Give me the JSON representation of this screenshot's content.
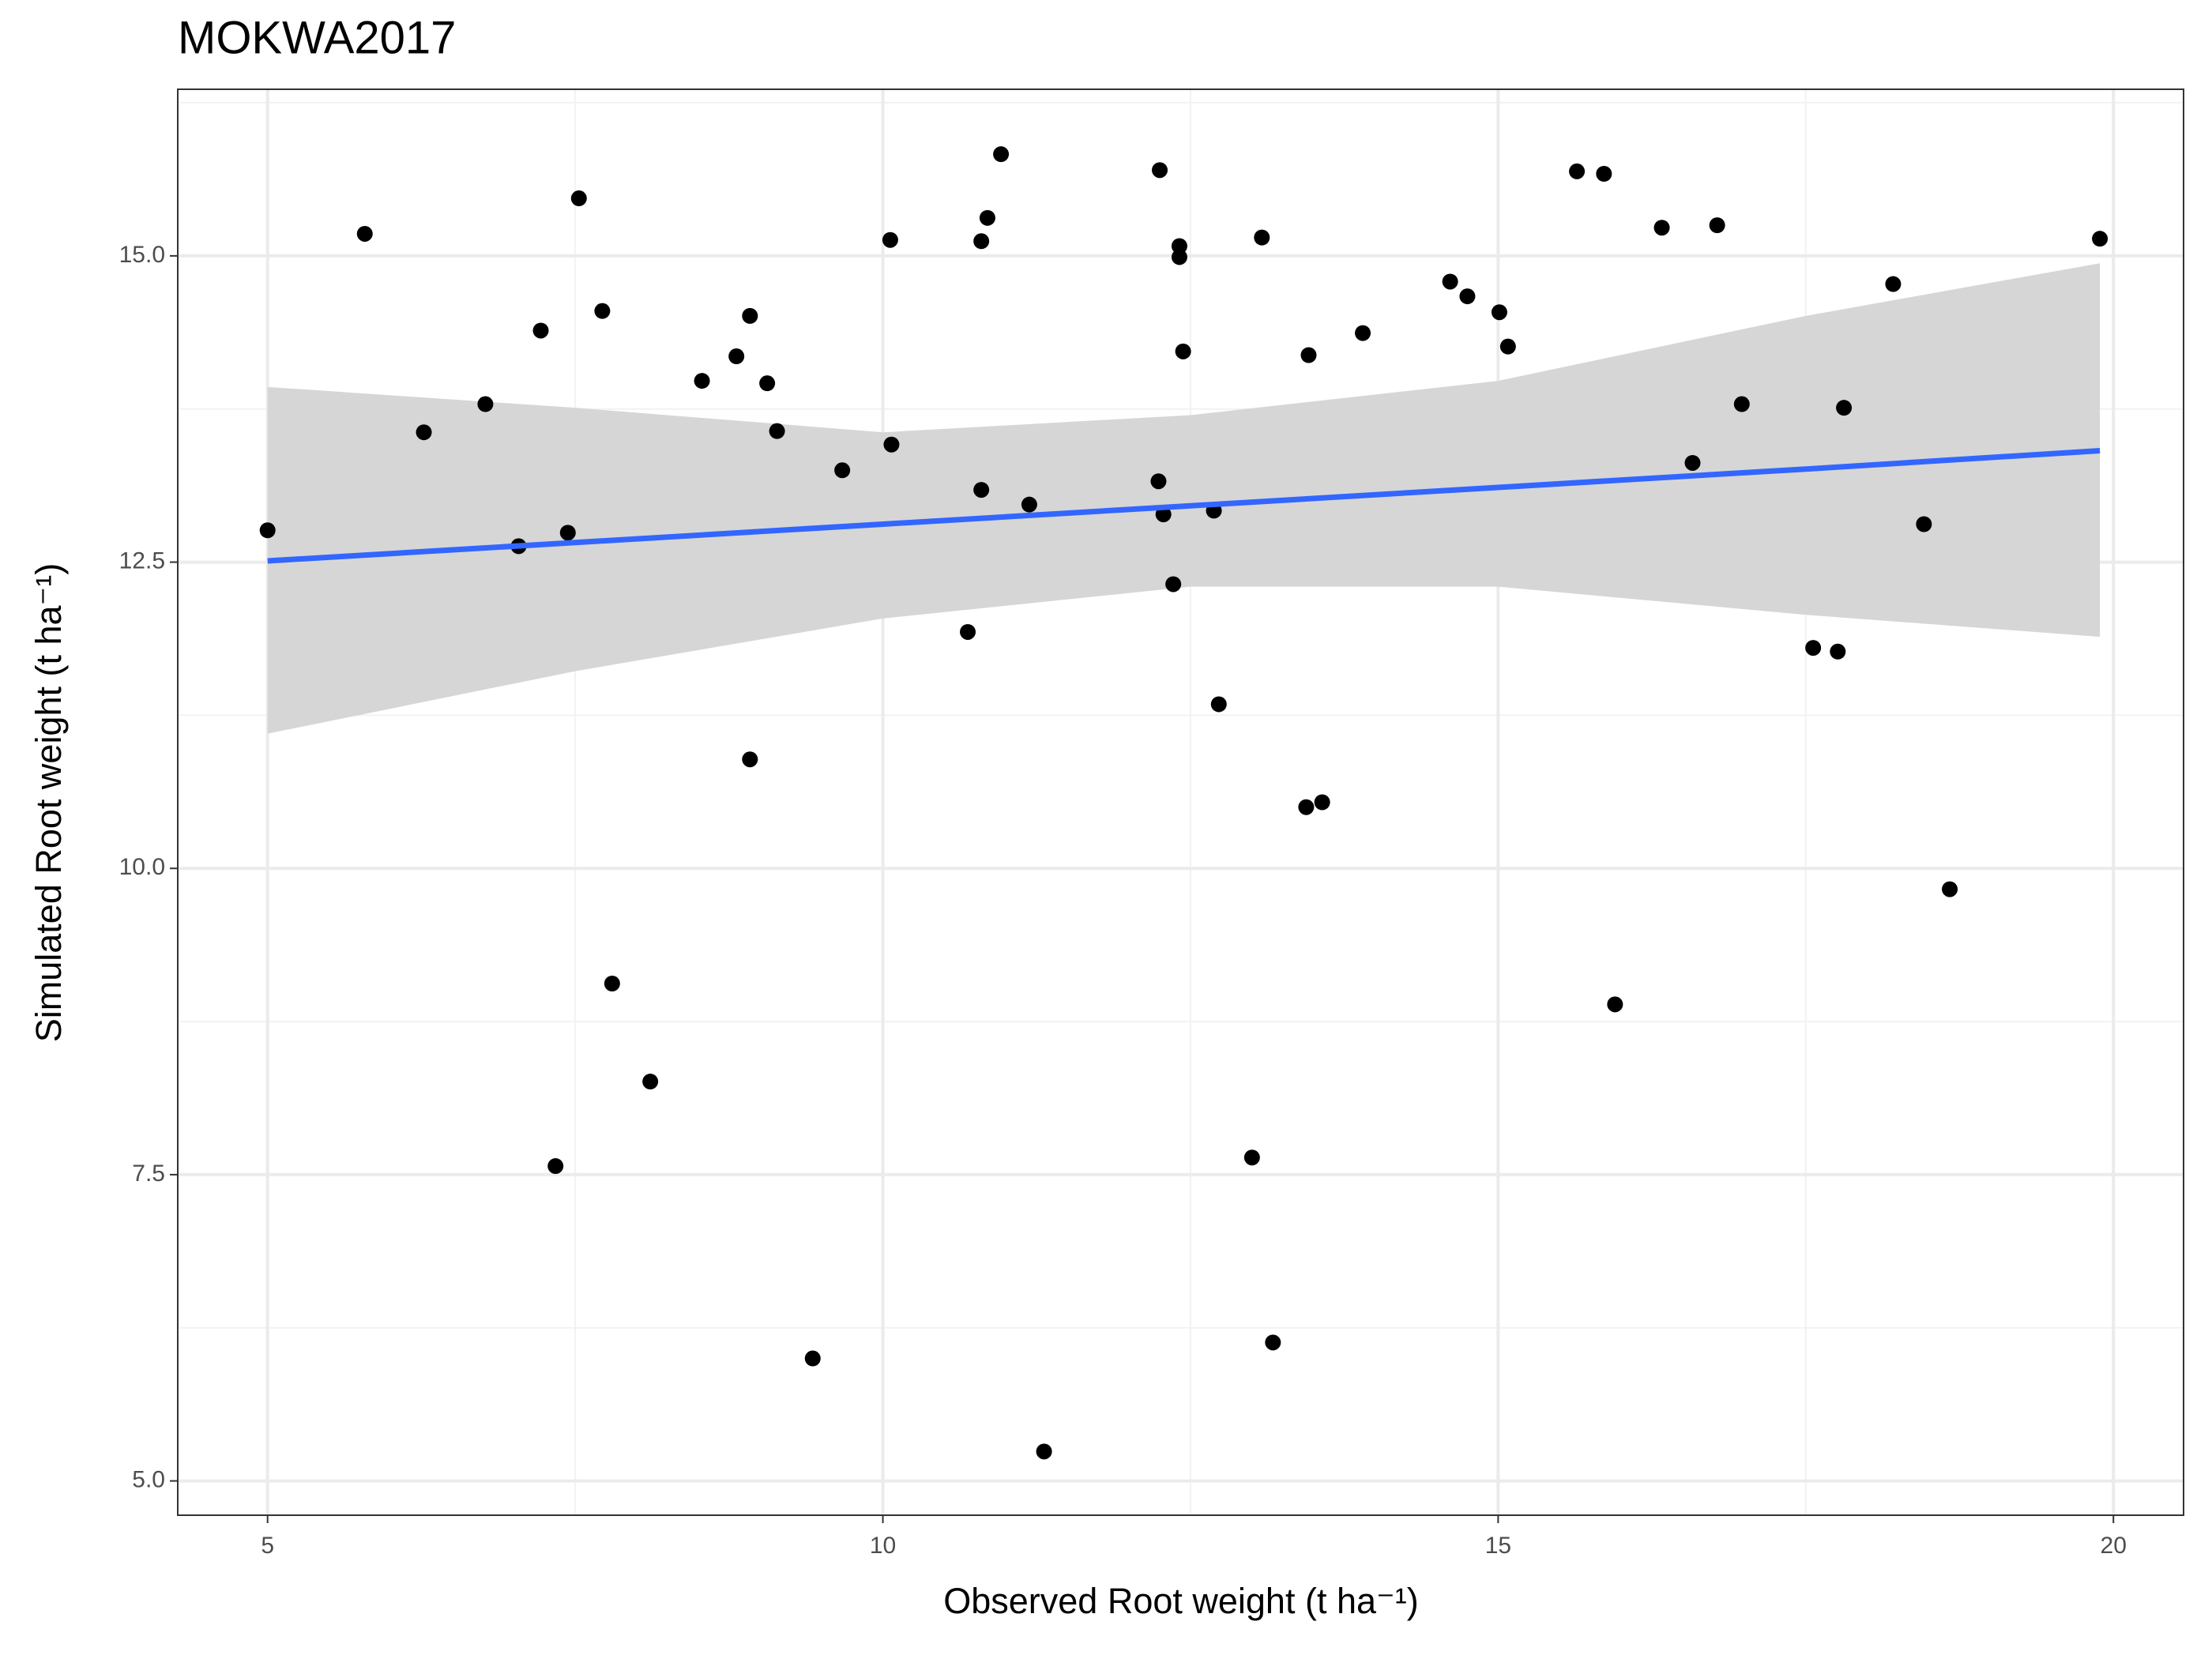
{
  "chart_data": {
    "type": "scatter",
    "title": "MOKWA2017",
    "x_label": "Observed Root weight (t ha⁻¹)",
    "y_label": "Simulated Root weight (t ha⁻¹)",
    "xlim": [
      4.27,
      20.57
    ],
    "ylim": [
      4.72,
      16.36
    ],
    "xticks": [
      5,
      10,
      15,
      20
    ],
    "yticks": [
      {
        "value": 5,
        "label": "5.0"
      },
      7.5,
      {
        "value": 10,
        "label": "10.0"
      },
      12.5,
      {
        "value": 15,
        "label": "15.0"
      }
    ],
    "xminor": [
      7.5,
      12.5,
      17.5
    ],
    "yminor": [
      6.25,
      8.75,
      11.25,
      13.75,
      16.25
    ],
    "grid": true,
    "point_color": "#000000",
    "x": [
      5.0,
      5.79,
      6.27,
      6.77,
      7.04,
      7.22,
      7.34,
      7.44,
      7.53,
      7.72,
      7.8,
      8.11,
      8.53,
      8.81,
      8.92,
      8.92,
      9.06,
      9.14,
      9.43,
      9.67,
      10.06,
      10.07,
      10.69,
      10.8,
      10.8,
      10.85,
      10.96,
      11.19,
      11.31,
      12.24,
      12.25,
      12.28,
      12.36,
      12.41,
      12.41,
      12.44,
      12.69,
      12.73,
      13.0,
      13.08,
      13.17,
      13.44,
      13.46,
      13.57,
      13.9,
      14.61,
      14.75,
      15.01,
      15.08,
      15.64,
      15.86,
      15.95,
      16.33,
      16.58,
      16.78,
      16.98,
      17.56,
      17.76,
      17.81,
      18.21,
      18.46,
      18.67,
      19.89
    ],
    "y": [
      12.76,
      15.18,
      13.56,
      13.79,
      12.63,
      14.39,
      7.57,
      12.74,
      15.47,
      14.55,
      9.06,
      8.26,
      13.98,
      14.18,
      14.51,
      10.89,
      13.96,
      13.57,
      6.0,
      13.25,
      15.13,
      13.46,
      11.93,
      15.12,
      13.09,
      15.31,
      15.83,
      12.97,
      5.24,
      13.16,
      15.7,
      12.89,
      12.32,
      15.08,
      14.99,
      14.22,
      12.92,
      11.34,
      7.64,
      15.15,
      6.13,
      10.5,
      14.19,
      10.54,
      14.37,
      14.79,
      14.67,
      14.54,
      14.26,
      15.69,
      15.67,
      8.89,
      15.23,
      13.31,
      15.25,
      13.79,
      11.8,
      11.77,
      13.76,
      14.77,
      12.81,
      9.83,
      15.14
    ],
    "fit": {
      "color": "#3366ff",
      "band_color": "#d6d6d6",
      "x": [
        5,
        7.5,
        10,
        12.5,
        15,
        17.5,
        19.89
      ],
      "y": [
        12.51,
        12.66,
        12.81,
        12.96,
        13.11,
        13.26,
        13.41
      ],
      "ymin": [
        11.1,
        11.61,
        12.04,
        12.3,
        12.3,
        12.07,
        11.89
      ],
      "ymax": [
        13.93,
        13.76,
        13.56,
        13.7,
        13.98,
        14.51,
        14.94
      ]
    }
  }
}
